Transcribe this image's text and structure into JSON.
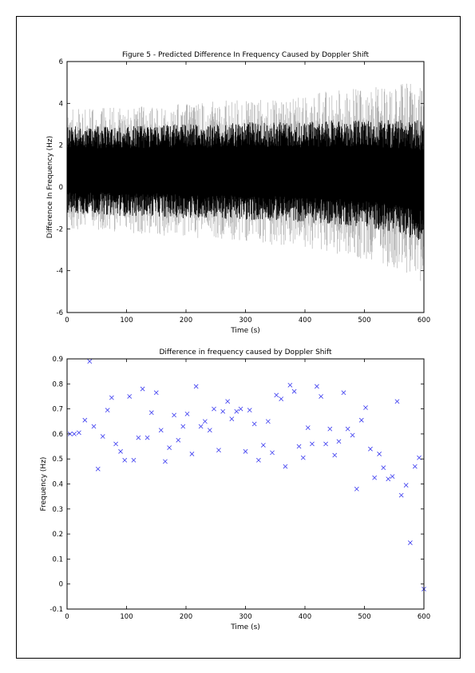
{
  "colors": {
    "signal_fill": "#000000",
    "signal_envelope": "#b3b3b3",
    "marker": "#3a3af0",
    "axis": "#000000"
  },
  "chart_data": [
    {
      "type": "line",
      "title": "Figure 5 - Predicted Difference In Frequency Caused by Doppler Shift",
      "xlabel": "Time (s)",
      "ylabel": "Difference In Frequency (Hz)",
      "xlim": [
        0,
        600
      ],
      "ylim": [
        -6,
        6
      ],
      "xticks": [
        0,
        100,
        200,
        300,
        400,
        500,
        600
      ],
      "yticks": [
        -6,
        -4,
        -2,
        0,
        2,
        4,
        6
      ],
      "grid": false,
      "series": [
        {
          "x": [
            0,
            50,
            100,
            150,
            200,
            250,
            300,
            350,
            400,
            450,
            500,
            550,
            600
          ],
          "dense_band_upper": [
            2.9,
            2.9,
            2.9,
            3.0,
            3.0,
            3.0,
            3.1,
            3.1,
            3.1,
            3.2,
            3.2,
            3.2,
            3.2
          ],
          "dense_band_lower": [
            -1.3,
            -1.3,
            -1.4,
            -1.4,
            -1.5,
            -1.5,
            -1.6,
            -1.6,
            -1.7,
            -1.8,
            -1.9,
            -2.2,
            -2.6
          ],
          "outer_envelope_upper": [
            3.7,
            3.8,
            3.8,
            3.9,
            4.0,
            4.1,
            4.2,
            4.3,
            4.5,
            4.6,
            4.8,
            5.0,
            5.3
          ],
          "outer_envelope_lower": [
            -2.0,
            -2.1,
            -2.2,
            -2.3,
            -2.4,
            -2.5,
            -2.6,
            -2.8,
            -3.0,
            -3.2,
            -3.5,
            -4.0,
            -4.6
          ]
        }
      ]
    },
    {
      "type": "scatter",
      "title": "Difference in frequency caused by Doppler Shift",
      "xlabel": "Time (s)",
      "ylabel": "Frequency (Hz)",
      "xlim": [
        0,
        600
      ],
      "ylim": [
        -0.1,
        0.9
      ],
      "xticks": [
        0,
        100,
        200,
        300,
        400,
        500,
        600
      ],
      "yticks": [
        -0.1,
        0,
        0.1,
        0.2,
        0.3,
        0.4,
        0.5,
        0.6,
        0.7,
        0.8,
        0.9
      ],
      "grid": false,
      "marker": "x",
      "series": [
        {
          "x": [
            5,
            12,
            20,
            30,
            38,
            45,
            52,
            60,
            68,
            75,
            82,
            90,
            97,
            105,
            112,
            120,
            127,
            135,
            142,
            150,
            158,
            165,
            172,
            180,
            187,
            195,
            202,
            210,
            217,
            225,
            232,
            240,
            247,
            255,
            262,
            270,
            277,
            285,
            292,
            300,
            307,
            315,
            322,
            330,
            338,
            345,
            352,
            360,
            367,
            375,
            382,
            390,
            397,
            405,
            412,
            420,
            427,
            435,
            442,
            450,
            457,
            465,
            472,
            480,
            487,
            495,
            502,
            510,
            517,
            525,
            532,
            540,
            547,
            555,
            562,
            570,
            577,
            585,
            592,
            600
          ],
          "y": [
            0.6,
            0.6,
            0.605,
            0.655,
            0.89,
            0.63,
            0.46,
            0.59,
            0.695,
            0.745,
            0.56,
            0.53,
            0.495,
            0.75,
            0.495,
            0.585,
            0.78,
            0.585,
            0.685,
            0.765,
            0.615,
            0.49,
            0.545,
            0.675,
            0.575,
            0.63,
            0.68,
            0.52,
            0.79,
            0.63,
            0.65,
            0.615,
            0.7,
            0.535,
            0.69,
            0.73,
            0.66,
            0.69,
            0.7,
            0.53,
            0.695,
            0.64,
            0.495,
            0.555,
            0.65,
            0.525,
            0.755,
            0.74,
            0.47,
            0.795,
            0.77,
            0.55,
            0.505,
            0.625,
            0.56,
            0.79,
            0.75,
            0.56,
            0.62,
            0.515,
            0.57,
            0.765,
            0.62,
            0.595,
            0.38,
            0.655,
            0.705,
            0.54,
            0.425,
            0.52,
            0.465,
            0.42,
            0.43,
            0.73,
            0.355,
            0.395,
            0.165,
            0.47,
            0.505,
            -0.02
          ]
        }
      ]
    }
  ]
}
